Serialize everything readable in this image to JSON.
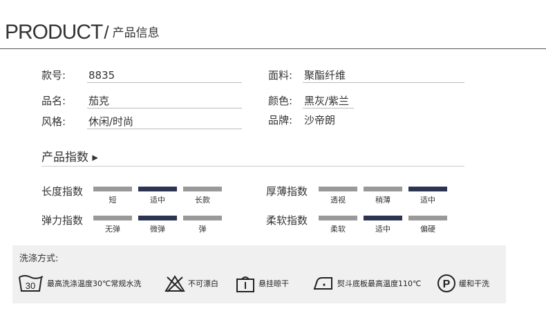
{
  "header": {
    "brand": "PRODUCT",
    "slash": "/",
    "subtitle": "产品信息"
  },
  "info": {
    "left": [
      {
        "label": "款号:",
        "value": "8835"
      },
      {
        "label": "品名:",
        "value": "茄克"
      },
      {
        "label": "风格:",
        "value": "休闲/时尚"
      }
    ],
    "right": [
      {
        "label": "面料:",
        "value": "聚酯纤维"
      },
      {
        "label": "颜色:",
        "value": "黑灰/紫兰"
      },
      {
        "label": "品牌:",
        "value": "沙帝朗"
      }
    ]
  },
  "index_section": {
    "title": "产品指数 ▸"
  },
  "metrics": [
    {
      "name": "长度指数",
      "options": [
        "短",
        "适中",
        "长款"
      ],
      "selected": 1
    },
    {
      "name": "弹力指数",
      "options": [
        "无弹",
        "微弹",
        "弹"
      ],
      "selected": 1
    },
    {
      "name": "厚薄指数",
      "options": [
        "透视",
        "稍薄",
        "适中"
      ],
      "selected": 2
    },
    {
      "name": "柔软指数",
      "options": [
        "柔软",
        "适中",
        "偏硬"
      ],
      "selected": 1
    }
  ],
  "colors": {
    "selected_bar": "#2b3450",
    "unselected_bar": "#999999",
    "wash_bg": "#f0f0f0"
  },
  "washing": {
    "title": "洗涤方式:",
    "items": [
      {
        "icon": "wash-30-icon",
        "icon_text": "30",
        "text": "最高洗涤温度30℃常规水洗"
      },
      {
        "icon": "no-bleach-icon",
        "text": "不可漂白"
      },
      {
        "icon": "hang-dry-icon",
        "text": "悬挂晾干"
      },
      {
        "icon": "iron-110-icon",
        "text": "熨斗底板最高温度110℃"
      },
      {
        "icon": "dry-clean-p-icon",
        "icon_text": "P",
        "text": "缓和干洗"
      }
    ]
  }
}
